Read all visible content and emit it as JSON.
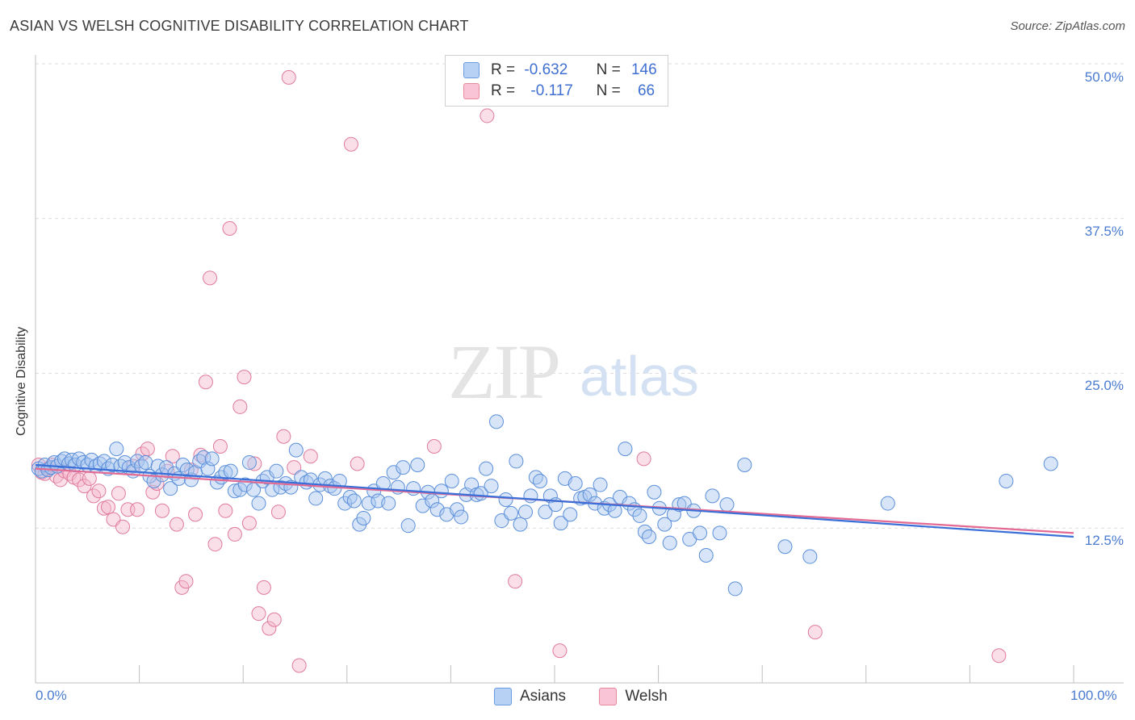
{
  "header": {
    "title": "ASIAN VS WELSH COGNITIVE DISABILITY CORRELATION CHART",
    "source": "Source: ZipAtlas.com"
  },
  "watermark": {
    "zip": "ZIP",
    "atlas": "atlas"
  },
  "legend": {
    "rows": [
      {
        "r_label": "R =",
        "r_value": "-0.632",
        "n_label": "N =",
        "n_value": "146"
      },
      {
        "r_label": "R =",
        "r_value": "-0.117",
        "n_label": "N =",
        "n_value": "66"
      }
    ]
  },
  "bottom_legend": {
    "asians": "Asians",
    "welsh": "Welsh"
  },
  "colors": {
    "asians_fill": "#a9c6ef",
    "asians_stroke": "#5b8fd9",
    "asians_line": "#3a6fd8",
    "welsh_fill": "#f5b8cc",
    "welsh_stroke": "#e07b9d",
    "welsh_line": "#e36a93",
    "tick_text": "#4a7bd0"
  },
  "chart_data": {
    "type": "scatter",
    "title": "ASIAN VS WELSH COGNITIVE DISABILITY CORRELATION CHART",
    "xlabel": "",
    "ylabel": "Cognitive Disability",
    "xlim": [
      0,
      100
    ],
    "ylim": [
      0,
      50
    ],
    "x_tick_labels": [
      "0.0%",
      "100.0%"
    ],
    "y_ticks": [
      12.5,
      25.0,
      37.5,
      50.0
    ],
    "y_tick_labels": [
      "12.5%",
      "25.0%",
      "37.5%",
      "50.0%"
    ],
    "grid": "horizontal dashed",
    "legend_position": "top-center",
    "series": [
      {
        "name": "Asians",
        "r": -0.632,
        "n": 146,
        "trend": {
          "x": [
            0,
            100
          ],
          "y": [
            17.6,
            11.8
          ]
        },
        "points": [
          [
            0.3,
            17.3
          ],
          [
            0.6,
            17.1
          ],
          [
            0.9,
            17.6
          ],
          [
            1.2,
            17.2
          ],
          [
            1.5,
            17.4
          ],
          [
            1.8,
            17.8
          ],
          [
            2.1,
            17.5
          ],
          [
            2.5,
            17.9
          ],
          [
            2.8,
            18.1
          ],
          [
            3.2,
            17.7
          ],
          [
            3.5,
            18.0
          ],
          [
            3.8,
            17.6
          ],
          [
            4.2,
            18.1
          ],
          [
            4.6,
            17.8
          ],
          [
            5.0,
            17.6
          ],
          [
            5.4,
            18.0
          ],
          [
            5.8,
            17.5
          ],
          [
            6.2,
            17.7
          ],
          [
            6.6,
            17.9
          ],
          [
            7.0,
            17.3
          ],
          [
            7.4,
            17.6
          ],
          [
            7.8,
            18.9
          ],
          [
            8.2,
            17.5
          ],
          [
            8.6,
            17.8
          ],
          [
            9.0,
            17.4
          ],
          [
            9.4,
            17.1
          ],
          [
            9.8,
            17.9
          ],
          [
            10.2,
            17.5
          ],
          [
            10.6,
            17.8
          ],
          [
            11.0,
            16.7
          ],
          [
            11.4,
            16.3
          ],
          [
            11.8,
            17.5
          ],
          [
            12.2,
            16.8
          ],
          [
            12.6,
            17.4
          ],
          [
            13.0,
            15.7
          ],
          [
            13.4,
            16.9
          ],
          [
            13.8,
            16.5
          ],
          [
            14.2,
            17.6
          ],
          [
            14.6,
            17.2
          ],
          [
            15.0,
            16.4
          ],
          [
            15.4,
            17.0
          ],
          [
            15.8,
            17.9
          ],
          [
            16.2,
            18.2
          ],
          [
            16.6,
            17.3
          ],
          [
            17.0,
            18.1
          ],
          [
            17.5,
            16.2
          ],
          [
            17.9,
            16.6
          ],
          [
            18.3,
            17.0
          ],
          [
            18.8,
            17.1
          ],
          [
            19.2,
            15.5
          ],
          [
            19.7,
            15.6
          ],
          [
            20.2,
            16.0
          ],
          [
            20.6,
            17.8
          ],
          [
            21.0,
            15.6
          ],
          [
            21.5,
            14.5
          ],
          [
            21.9,
            16.3
          ],
          [
            22.3,
            16.6
          ],
          [
            22.8,
            15.6
          ],
          [
            23.2,
            17.1
          ],
          [
            23.6,
            15.8
          ],
          [
            24.1,
            16.1
          ],
          [
            24.6,
            15.8
          ],
          [
            25.1,
            18.8
          ],
          [
            25.6,
            16.6
          ],
          [
            26.1,
            16.2
          ],
          [
            26.5,
            16.4
          ],
          [
            27.0,
            14.9
          ],
          [
            27.4,
            16.0
          ],
          [
            27.9,
            16.5
          ],
          [
            28.4,
            15.9
          ],
          [
            28.8,
            15.7
          ],
          [
            29.3,
            16.3
          ],
          [
            29.8,
            14.5
          ],
          [
            30.3,
            15.0
          ],
          [
            30.7,
            14.7
          ],
          [
            31.2,
            12.8
          ],
          [
            31.6,
            13.3
          ],
          [
            32.1,
            14.5
          ],
          [
            32.6,
            15.5
          ],
          [
            33.0,
            14.7
          ],
          [
            33.5,
            16.1
          ],
          [
            34.0,
            14.5
          ],
          [
            34.5,
            17.0
          ],
          [
            34.9,
            15.8
          ],
          [
            35.4,
            17.4
          ],
          [
            35.9,
            12.7
          ],
          [
            36.4,
            15.7
          ],
          [
            36.8,
            17.6
          ],
          [
            37.3,
            14.3
          ],
          [
            37.8,
            15.4
          ],
          [
            38.2,
            14.7
          ],
          [
            38.7,
            14.0
          ],
          [
            39.1,
            15.5
          ],
          [
            39.6,
            13.6
          ],
          [
            40.1,
            16.3
          ],
          [
            40.6,
            14.0
          ],
          [
            41.0,
            13.4
          ],
          [
            41.5,
            15.2
          ],
          [
            42.0,
            16.0
          ],
          [
            42.5,
            15.2
          ],
          [
            42.9,
            15.3
          ],
          [
            43.4,
            17.3
          ],
          [
            43.9,
            15.9
          ],
          [
            44.4,
            21.1
          ],
          [
            44.9,
            13.1
          ],
          [
            45.3,
            14.8
          ],
          [
            45.8,
            13.7
          ],
          [
            46.3,
            17.9
          ],
          [
            46.7,
            12.8
          ],
          [
            47.2,
            13.8
          ],
          [
            47.7,
            15.1
          ],
          [
            48.2,
            16.6
          ],
          [
            48.6,
            16.3
          ],
          [
            49.1,
            13.8
          ],
          [
            49.6,
            15.1
          ],
          [
            50.1,
            14.4
          ],
          [
            50.6,
            12.9
          ],
          [
            51.0,
            16.5
          ],
          [
            51.5,
            13.6
          ],
          [
            52.0,
            16.1
          ],
          [
            52.5,
            14.9
          ],
          [
            52.9,
            15.0
          ],
          [
            53.4,
            15.2
          ],
          [
            53.9,
            14.5
          ],
          [
            54.4,
            16.0
          ],
          [
            54.8,
            14.1
          ],
          [
            55.3,
            14.4
          ],
          [
            55.8,
            13.9
          ],
          [
            56.3,
            15.0
          ],
          [
            56.8,
            18.9
          ],
          [
            57.2,
            14.5
          ],
          [
            57.7,
            14.0
          ],
          [
            58.2,
            13.5
          ],
          [
            58.7,
            12.2
          ],
          [
            59.1,
            11.8
          ],
          [
            59.6,
            15.4
          ],
          [
            60.1,
            14.1
          ],
          [
            60.6,
            12.8
          ],
          [
            61.1,
            11.3
          ],
          [
            61.5,
            13.6
          ],
          [
            62.0,
            14.4
          ],
          [
            62.5,
            14.5
          ],
          [
            63.0,
            11.6
          ],
          [
            63.4,
            13.9
          ],
          [
            64.0,
            12.1
          ],
          [
            64.6,
            10.3
          ],
          [
            65.2,
            15.1
          ],
          [
            65.9,
            12.1
          ],
          [
            66.6,
            14.4
          ],
          [
            67.4,
            7.6
          ],
          [
            68.3,
            17.6
          ],
          [
            72.2,
            11.0
          ],
          [
            74.6,
            10.2
          ],
          [
            82.1,
            14.5
          ],
          [
            93.5,
            16.3
          ],
          [
            97.8,
            17.7
          ]
        ]
      },
      {
        "name": "Welsh",
        "r": -0.117,
        "n": 66,
        "trend": {
          "x": [
            0,
            100
          ],
          "y": [
            17.3,
            12.1
          ]
        },
        "points": [
          [
            0.3,
            17.6
          ],
          [
            0.6,
            17.0
          ],
          [
            0.9,
            16.9
          ],
          [
            1.2,
            17.3
          ],
          [
            1.6,
            17.6
          ],
          [
            2.0,
            16.7
          ],
          [
            2.4,
            16.4
          ],
          [
            2.8,
            17.1
          ],
          [
            3.3,
            16.9
          ],
          [
            3.7,
            16.6
          ],
          [
            4.2,
            16.4
          ],
          [
            4.7,
            15.9
          ],
          [
            5.2,
            16.5
          ],
          [
            5.6,
            15.1
          ],
          [
            6.1,
            15.5
          ],
          [
            6.6,
            14.1
          ],
          [
            7.0,
            14.2
          ],
          [
            7.5,
            13.2
          ],
          [
            8.0,
            15.3
          ],
          [
            8.4,
            12.6
          ],
          [
            8.9,
            14.0
          ],
          [
            9.4,
            17.5
          ],
          [
            9.8,
            14.0
          ],
          [
            10.3,
            18.5
          ],
          [
            10.8,
            18.9
          ],
          [
            11.3,
            15.4
          ],
          [
            11.7,
            16.1
          ],
          [
            12.2,
            13.9
          ],
          [
            12.7,
            17.1
          ],
          [
            13.2,
            18.3
          ],
          [
            13.6,
            12.8
          ],
          [
            14.1,
            7.7
          ],
          [
            14.5,
            8.2
          ],
          [
            15.0,
            17.2
          ],
          [
            15.4,
            13.6
          ],
          [
            15.9,
            18.4
          ],
          [
            16.4,
            24.3
          ],
          [
            16.8,
            32.7
          ],
          [
            17.3,
            11.2
          ],
          [
            17.8,
            19.1
          ],
          [
            18.3,
            13.9
          ],
          [
            18.7,
            36.7
          ],
          [
            19.2,
            12.0
          ],
          [
            19.7,
            22.3
          ],
          [
            20.1,
            24.7
          ],
          [
            20.6,
            12.9
          ],
          [
            21.1,
            17.7
          ],
          [
            21.5,
            5.6
          ],
          [
            22.0,
            7.7
          ],
          [
            22.5,
            4.4
          ],
          [
            23.0,
            5.1
          ],
          [
            23.4,
            13.8
          ],
          [
            23.9,
            19.9
          ],
          [
            24.4,
            48.9
          ],
          [
            24.9,
            17.4
          ],
          [
            25.4,
            1.4
          ],
          [
            26.5,
            18.3
          ],
          [
            30.4,
            43.5
          ],
          [
            31.0,
            17.7
          ],
          [
            38.4,
            19.1
          ],
          [
            43.5,
            45.8
          ],
          [
            46.2,
            8.2
          ],
          [
            50.5,
            2.6
          ],
          [
            58.6,
            18.1
          ],
          [
            75.1,
            4.1
          ],
          [
            92.8,
            2.2
          ]
        ]
      }
    ]
  }
}
